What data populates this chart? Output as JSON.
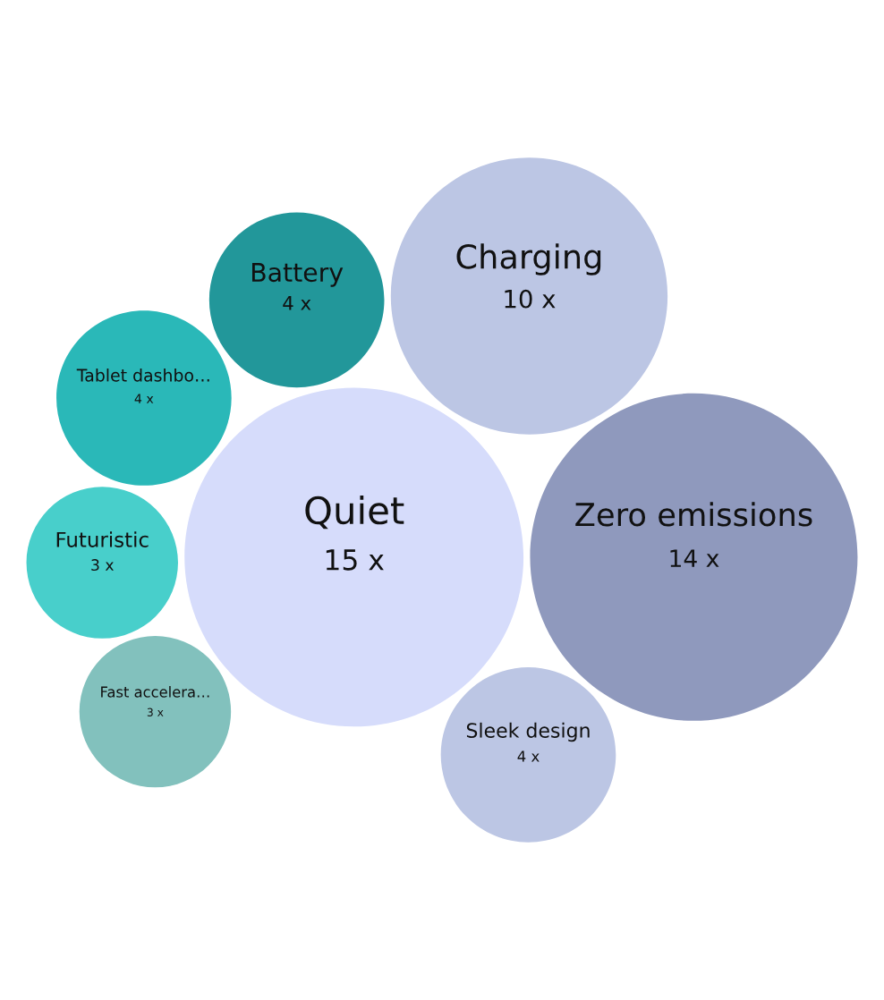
{
  "chart_data": {
    "type": "other",
    "categories": [
      "Quiet",
      "Zero emissions",
      "Charging",
      "Battery",
      "Sleek design",
      "Tablet dashbo…",
      "Futuristic",
      "Fast accelera…"
    ],
    "values": [
      15,
      14,
      10,
      4,
      4,
      4,
      3,
      3
    ],
    "value_labels": [
      "15 x",
      "14 x",
      "10 x",
      "4 x",
      "4 x",
      "4 x",
      "3 x",
      "3 x"
    ],
    "colors": [
      "#d6dcfb",
      "#8f99bd",
      "#bcc6e4",
      "#22979a",
      "#bcc6e4",
      "#2ab8b8",
      "#48cfcb",
      "#82c1bd"
    ]
  }
}
